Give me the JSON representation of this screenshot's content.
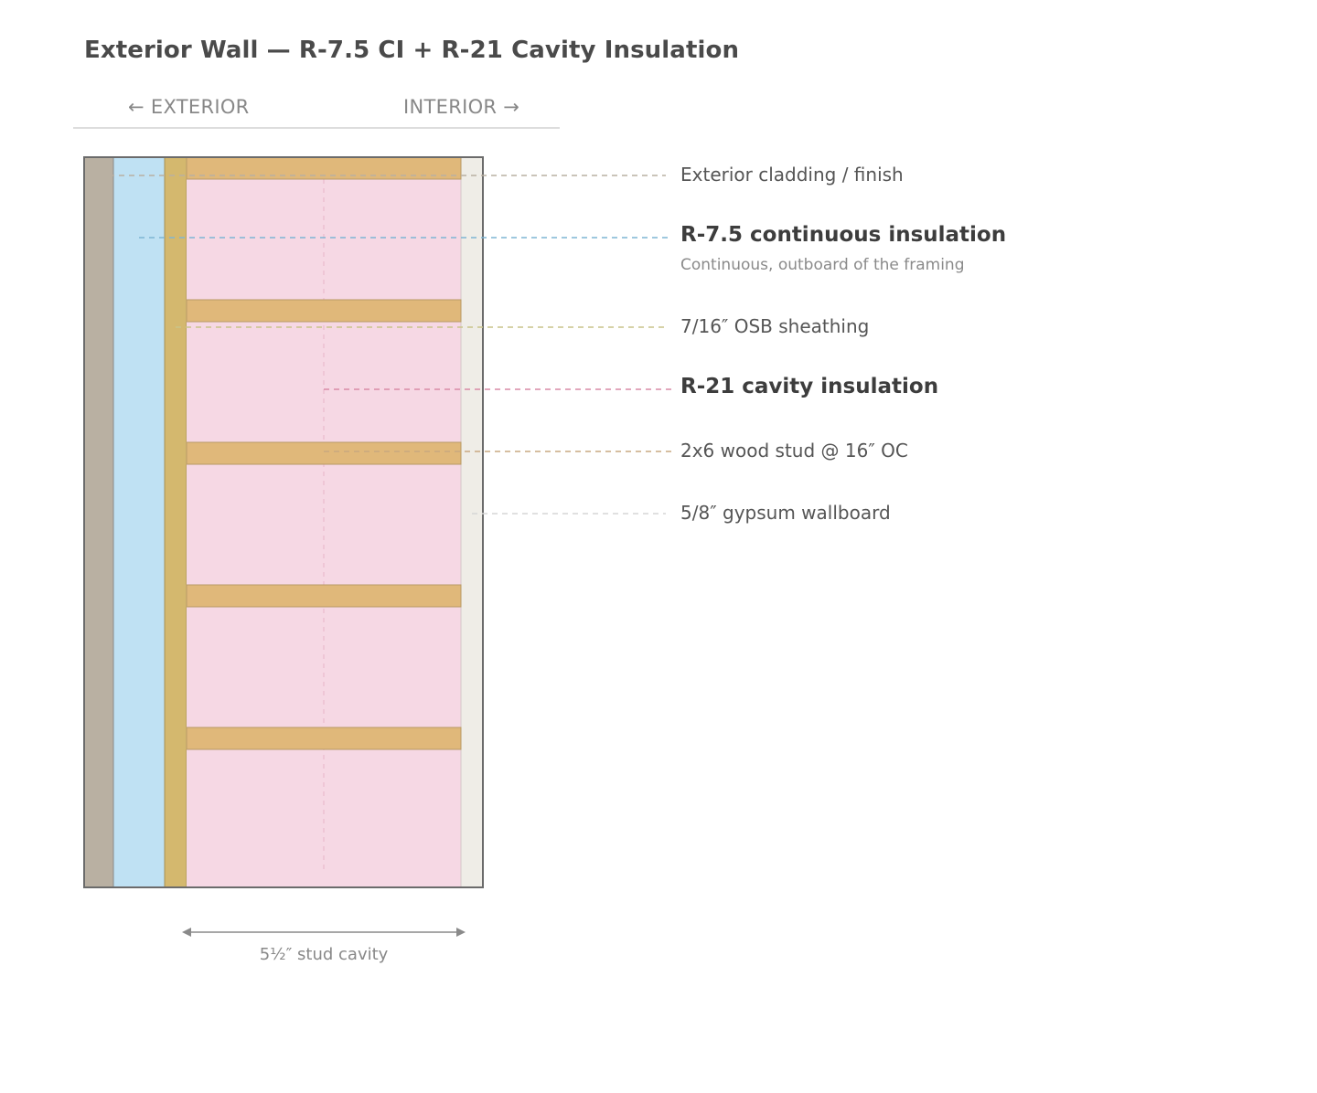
{
  "title": "Exterior Wall — R-7.5 CI + R-21 Cavity Insulation",
  "orientation": {
    "exterior": "← EXTERIOR",
    "interior": "INTERIOR →"
  },
  "layers": [
    {
      "id": "cladding",
      "label": "Exterior cladding / finish",
      "emphasis": false,
      "color": "#b9b0a2",
      "leader_color": "#b9b0a2"
    },
    {
      "id": "ci",
      "label": "R-7.5 continuous insulation",
      "sublabel": "Continuous, outboard of the framing",
      "emphasis": true,
      "color": "#bfe1f3",
      "leader_color": "#7fb5d3"
    },
    {
      "id": "osb",
      "label": "7/16″ OSB sheathing",
      "emphasis": false,
      "color": "#d4b86e",
      "leader_color": "#c9c48a"
    },
    {
      "id": "cavity",
      "label": "R-21 cavity insulation",
      "emphasis": true,
      "color": "#f6d8e4",
      "leader_color": "#d98aa6"
    },
    {
      "id": "stud",
      "label": "2x6 wood stud @ 16″ OC",
      "emphasis": false,
      "color": "#e0b87a",
      "leader_color": "#c8a880"
    },
    {
      "id": "gypsum",
      "label": "5/8″ gypsum wallboard",
      "emphasis": false,
      "color": "#efede7",
      "leader_color": "#d6d6d6"
    }
  ],
  "dimension": {
    "label": "5½″ stud cavity"
  }
}
